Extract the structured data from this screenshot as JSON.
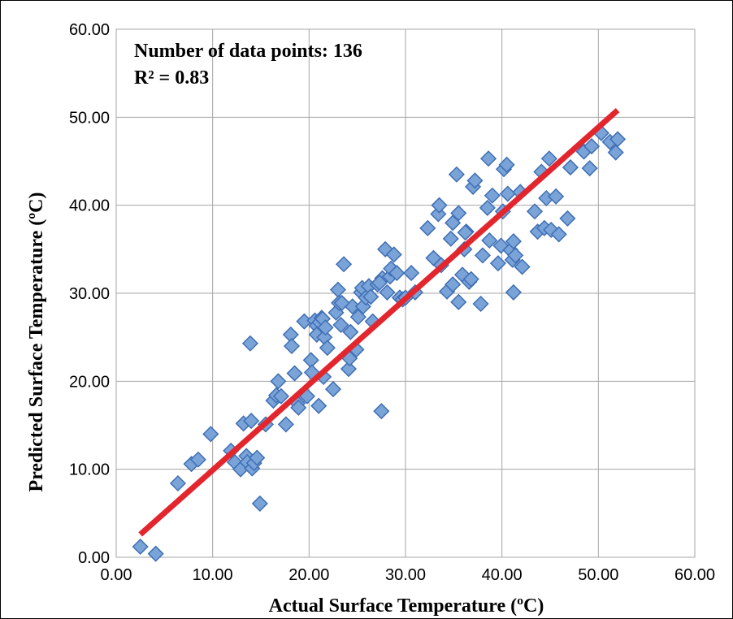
{
  "chart_data": {
    "type": "scatter",
    "xlabel": "Actual Surface Temperature (ºC)",
    "ylabel": "Predicted Surface Temperature (ºC)",
    "annotations": [
      "Number of data points: 136",
      "R² = 0.83"
    ],
    "xlim": [
      0,
      60
    ],
    "ylim": [
      0,
      60
    ],
    "x_ticks": [
      "0.00",
      "10.00",
      "20.00",
      "30.00",
      "40.00",
      "50.00",
      "60.00"
    ],
    "y_ticks": [
      "0.00",
      "10.00",
      "20.00",
      "30.00",
      "40.00",
      "50.00",
      "60.00"
    ],
    "grid": true,
    "marker_color": "#7aa3d8",
    "marker_edge_color": "#3f6fb5",
    "trendline_color": "#e3262d",
    "trendline": {
      "x": [
        2.5,
        52.0
      ],
      "y": [
        2.6,
        50.8
      ]
    },
    "series": [
      {
        "x": [
          2.5,
          4.1,
          6.4,
          7.8,
          8.5,
          9.8,
          11.9,
          12.3,
          12.9,
          13.2,
          13.5,
          13.6,
          13.9,
          14.0,
          14.1,
          14.3,
          14.6,
          14.9,
          15.5,
          16.3,
          16.6,
          16.8,
          17.1,
          17.6,
          18.1,
          18.2,
          18.5,
          18.8,
          18.9,
          19.5,
          19.8,
          20.2,
          20.3,
          20.6,
          20.8,
          20.8,
          21.0,
          21.1,
          21.3,
          21.4,
          21.5,
          21.6,
          21.9,
          22.5,
          22.8,
          23.0,
          23.1,
          23.3,
          23.6,
          24.1,
          24.2,
          24.3,
          24.5,
          24.9,
          25.1,
          25.4,
          25.5,
          25.6,
          25.9,
          26.2,
          26.6,
          27.1,
          27.5,
          27.6,
          27.9,
          28.1,
          28.4,
          28.5,
          28.8,
          29.1,
          29.4,
          29.7,
          30.0,
          31.0,
          32.3,
          32.9,
          33.4,
          33.5,
          33.7,
          34.3,
          34.7,
          34.9,
          35.3,
          35.5,
          35.5,
          35.9,
          36.1,
          36.3,
          36.6,
          36.8,
          37.0,
          37.2,
          37.8,
          38.0,
          38.5,
          38.6,
          38.7,
          39.0,
          39.6,
          39.9,
          40.2,
          40.5,
          40.6,
          40.9,
          41.1,
          41.2,
          41.4,
          41.9,
          42.1,
          43.4,
          43.7,
          44.1,
          44.4,
          44.6,
          44.9,
          45.1,
          45.6,
          45.9,
          46.8,
          47.1,
          48.5,
          49.1,
          49.3,
          50.3,
          51.2,
          51.8,
          52.0,
          27.3,
          34.9,
          30.6,
          36.2,
          41.2,
          21.7,
          23.4,
          26.4,
          40.1
        ],
        "y": [
          1.2,
          0.4,
          8.4,
          10.6,
          11.1,
          14.0,
          12.1,
          10.8,
          10.0,
          15.2,
          11.5,
          10.8,
          24.3,
          15.5,
          10.1,
          10.7,
          11.3,
          6.1,
          15.1,
          17.8,
          18.4,
          20.0,
          18.3,
          15.1,
          25.3,
          24.0,
          20.9,
          17.5,
          17.0,
          26.8,
          18.3,
          22.4,
          21.0,
          26.9,
          26.3,
          25.3,
          17.2,
          26.7,
          27.2,
          27.1,
          20.5,
          25.0,
          23.8,
          19.1,
          27.8,
          30.4,
          28.9,
          26.4,
          33.3,
          21.4,
          22.6,
          25.6,
          28.5,
          23.6,
          27.3,
          30.1,
          30.6,
          28.5,
          29.5,
          30.8,
          26.8,
          31.0,
          16.6,
          31.7,
          35.0,
          30.1,
          31.9,
          32.8,
          34.4,
          32.3,
          29.5,
          29.3,
          29.5,
          30.1,
          37.4,
          34.0,
          39.0,
          40.0,
          33.2,
          30.2,
          36.2,
          38.0,
          43.5,
          39.1,
          29.0,
          32.1,
          35.0,
          37.0,
          31.3,
          31.6,
          42.1,
          42.8,
          28.8,
          34.3,
          39.7,
          45.3,
          36.0,
          41.1,
          33.4,
          35.4,
          44.1,
          44.6,
          41.3,
          34.9,
          33.8,
          30.1,
          34.3,
          41.5,
          33.0,
          39.3,
          37.0,
          43.8,
          37.4,
          40.8,
          45.3,
          37.2,
          41.0,
          36.7,
          38.5,
          44.3,
          46.1,
          44.2,
          46.7,
          48.2,
          47.2,
          46.0,
          47.5,
          31.2,
          31.0,
          32.3,
          36.9,
          35.9,
          26.1,
          28.9,
          29.6,
          39.3
        ]
      }
    ]
  }
}
